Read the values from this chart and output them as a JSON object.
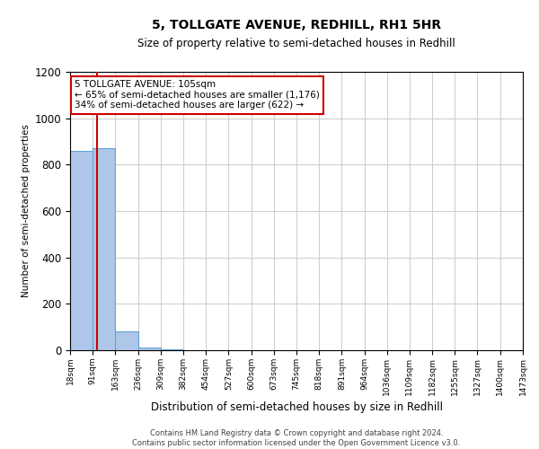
{
  "title": "5, TOLLGATE AVENUE, REDHILL, RH1 5HR",
  "subtitle": "Size of property relative to semi-detached houses in Redhill",
  "xlabel": "Distribution of semi-detached houses by size in Redhill",
  "ylabel": "Number of semi-detached properties",
  "footer_line1": "Contains HM Land Registry data © Crown copyright and database right 2024.",
  "footer_line2": "Contains public sector information licensed under the Open Government Licence v3.0.",
  "annotation_title": "5 TOLLGATE AVENUE: 105sqm",
  "annotation_line1": "← 65% of semi-detached houses are smaller (1,176)",
  "annotation_line2": "34% of semi-detached houses are larger (622) →",
  "property_size": 105,
  "bin_edges": [
    18,
    91,
    163,
    236,
    309,
    382,
    454,
    527,
    600,
    673,
    745,
    818,
    891,
    964,
    1036,
    1109,
    1182,
    1255,
    1327,
    1400,
    1473
  ],
  "bin_labels": [
    "18sqm",
    "91sqm",
    "163sqm",
    "236sqm",
    "309sqm",
    "382sqm",
    "454sqm",
    "527sqm",
    "600sqm",
    "673sqm",
    "745sqm",
    "818sqm",
    "891sqm",
    "964sqm",
    "1036sqm",
    "1109sqm",
    "1182sqm",
    "1255sqm",
    "1327sqm",
    "1400sqm",
    "1473sqm"
  ],
  "bar_heights": [
    860,
    870,
    80,
    10,
    2,
    0,
    0,
    0,
    0,
    0,
    0,
    0,
    0,
    0,
    0,
    0,
    0,
    0,
    0,
    0
  ],
  "bar_color": "#aec6e8",
  "bar_edge_color": "#5a9fd4",
  "red_line_color": "#cc0000",
  "annotation_box_color": "#ffffff",
  "annotation_box_edge": "#cc0000",
  "grid_color": "#d0d0d0",
  "background_color": "#ffffff",
  "ylim": [
    0,
    1200
  ],
  "yticks": [
    0,
    200,
    400,
    600,
    800,
    1000,
    1200
  ]
}
